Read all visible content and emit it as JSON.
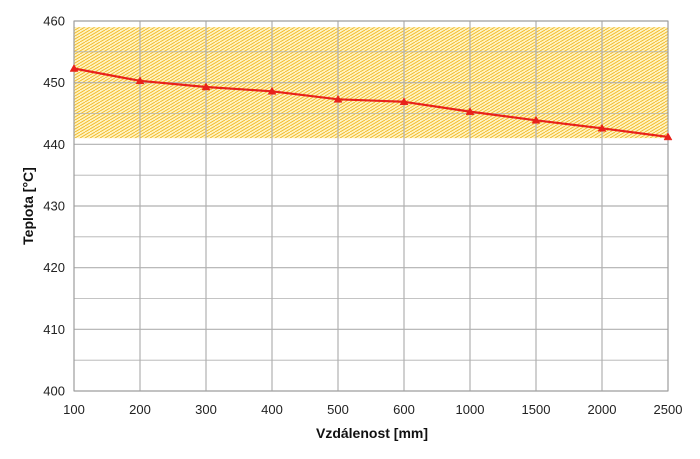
{
  "chart_data": {
    "type": "line",
    "title": "",
    "xlabel": "Vzdálenost  [mm]",
    "ylabel": "Teplota [°C]",
    "categories": [
      "100",
      "200",
      "300",
      "400",
      "500",
      "600",
      "1000",
      "1500",
      "2000",
      "2500"
    ],
    "x_scale": "categorical (equally spaced)",
    "ylim": [
      400,
      460
    ],
    "y_ticks": [
      400,
      410,
      420,
      430,
      440,
      450,
      460
    ],
    "y_minor_gridlines": [
      405,
      415,
      425,
      435,
      445,
      455
    ],
    "grid": true,
    "legend": "none",
    "series": [
      {
        "values": [
          452.3,
          450.3,
          449.3,
          448.6,
          447.3,
          446.9,
          445.3,
          443.9,
          442.6,
          441.2
        ],
        "color": "#e8221b",
        "marker": "triangle"
      }
    ],
    "shaded_band": {
      "y_range": [
        441,
        459
      ],
      "fill_color": "#fff3c2",
      "hatch_color": "#f0b820",
      "pattern": "brick hatch"
    },
    "colors": {
      "gridline": "#b0b0b0",
      "plot_border": "#9a9a9a",
      "line": "#e8221b"
    }
  }
}
